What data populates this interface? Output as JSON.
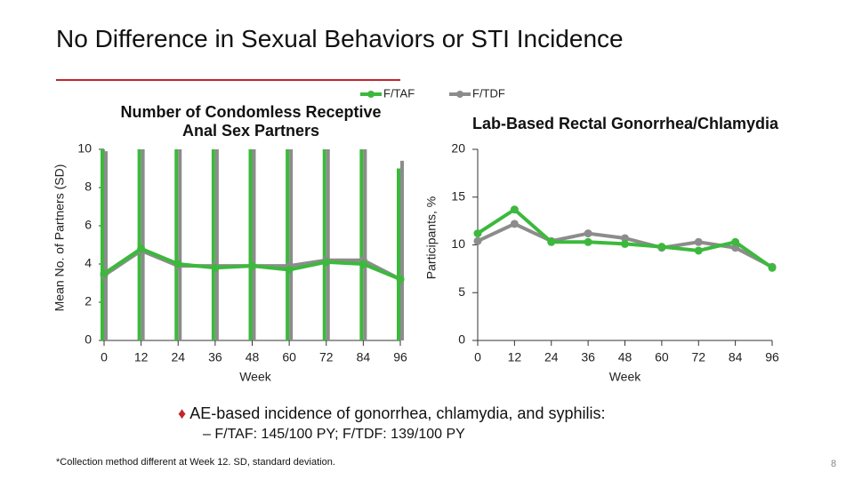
{
  "title": "No Difference in Sexual Behaviors or STI Incidence",
  "chart_data": [
    {
      "type": "line",
      "title": "Number of Condomless Receptive Anal Sex Partners",
      "x_label": "Week",
      "y_label": "Mean No. of Partners (SD)",
      "x": [
        0,
        12,
        24,
        36,
        48,
        60,
        72,
        84,
        96
      ],
      "xlim": [
        0,
        96
      ],
      "xticks": [
        0,
        12,
        24,
        36,
        48,
        60,
        72,
        84,
        96
      ],
      "ylim": [
        0,
        10
      ],
      "yticks": [
        0,
        2,
        4,
        6,
        8,
        10
      ],
      "series": [
        {
          "name": "F/TAF",
          "color": "#3cb93c",
          "values": [
            3.5,
            4.8,
            4.0,
            3.8,
            3.9,
            3.7,
            4.1,
            4.0,
            3.2
          ],
          "error": [
            6.5,
            7,
            7,
            7,
            7,
            7,
            7,
            7,
            5.8
          ]
        },
        {
          "name": "F/TDF",
          "color": "#8c8c8c",
          "values": [
            3.4,
            4.7,
            3.9,
            3.9,
            3.9,
            3.9,
            4.2,
            4.2,
            3.2
          ],
          "error": [
            6.5,
            7,
            7,
            7,
            7,
            7,
            7,
            7,
            6.2
          ]
        }
      ]
    },
    {
      "type": "line",
      "title": "Lab-Based Rectal Gonorrhea/Chlamydia",
      "x_label": "Week",
      "y_label": "Participants, %",
      "x": [
        0,
        12,
        24,
        36,
        48,
        60,
        72,
        84,
        96
      ],
      "xlim": [
        0,
        96
      ],
      "xticks": [
        0,
        12,
        24,
        36,
        48,
        60,
        72,
        84,
        96
      ],
      "ylim": [
        0,
        20
      ],
      "yticks": [
        0,
        5,
        10,
        15,
        20
      ],
      "series": [
        {
          "name": "F/TAF",
          "color": "#3cb93c",
          "values": [
            11.2,
            13.7,
            10.3,
            10.3,
            10.1,
            9.8,
            9.4,
            10.3,
            7.6
          ]
        },
        {
          "name": "F/TDF",
          "color": "#8c8c8c",
          "values": [
            10.4,
            12.2,
            10.4,
            11.2,
            10.7,
            9.7,
            10.3,
            9.7,
            7.7
          ]
        }
      ]
    }
  ],
  "bullet": "AE-based incidence of gonorrhea, chlamydia, and syphilis:",
  "sub_bullet": "F/TAF: 145/100 PY; F/TDF: 139/100 PY",
  "footnote": "*Collection method different at Week 12. SD, standard deviation.",
  "page_number": "8"
}
